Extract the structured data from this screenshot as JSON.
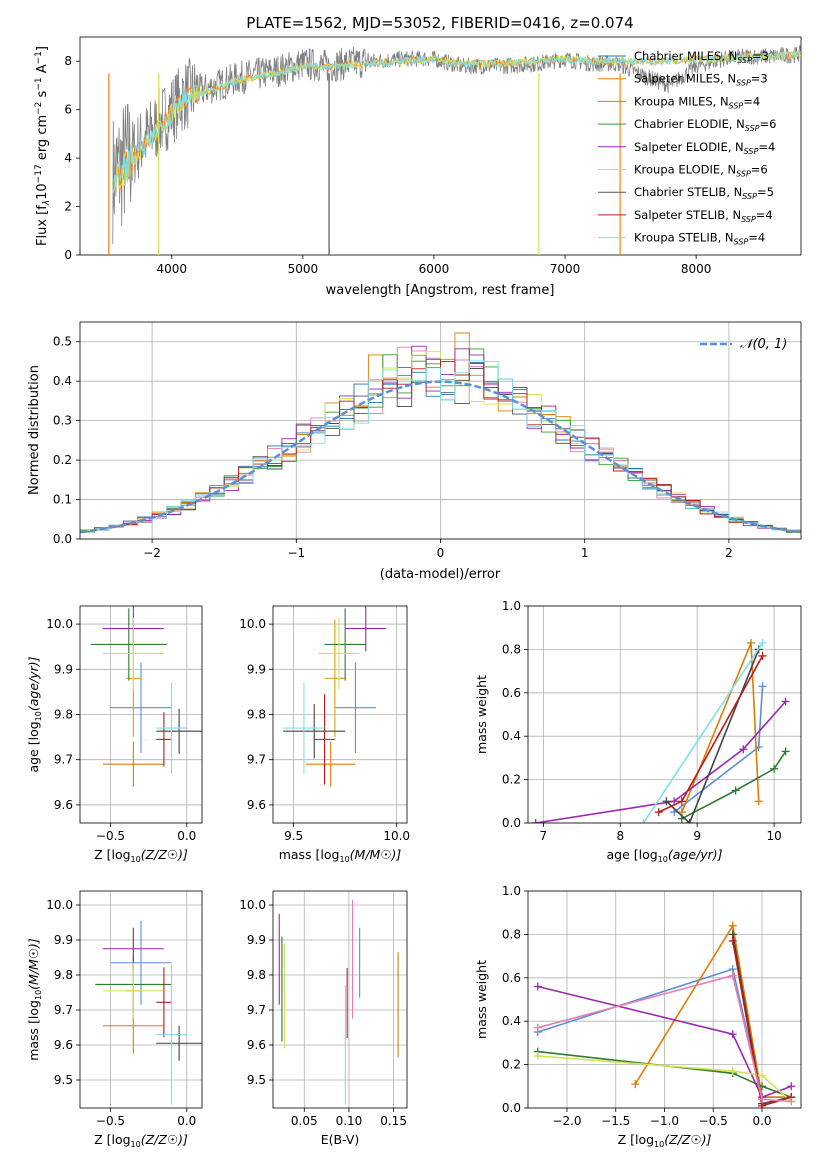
{
  "title": "PLATE=1562, MJD=53052, FIBERID=0416, z=0.074",
  "models": [
    {
      "name": "Chabrier MILES",
      "nssp": "3",
      "color": "#1f77b4"
    },
    {
      "name": "Salpeter MILES",
      "nssp": "3",
      "color": "#ff7f0e"
    },
    {
      "name": "Kroupa MILES",
      "nssp": "4",
      "color": "#e07b00"
    },
    {
      "name": "Chabrier ELODIE",
      "nssp": "6",
      "color": "#2ca02c"
    },
    {
      "name": "Salpeter ELODIE",
      "nssp": "4",
      "color": "#9c27b0"
    },
    {
      "name": "Kroupa ELODIE",
      "nssp": "6",
      "color": "#d4e157"
    },
    {
      "name": "Chabrier STELIB",
      "nssp": "5",
      "color": "#555555"
    },
    {
      "name": "Salpeter STELIB",
      "nssp": "4",
      "color": "#b71c1c"
    },
    {
      "name": "Kroupa STELIB",
      "nssp": "4",
      "color": "#80deea"
    }
  ],
  "panel_spectrum": {
    "xlabel": "wavelength [Angstrom, rest frame]",
    "ylabel_parts": [
      "Flux [f",
      "λ",
      "10",
      "−17",
      " erg cm",
      "−2",
      " s",
      "−1",
      " A",
      "−1",
      "]"
    ],
    "x_ticks": [
      "4000",
      "5000",
      "6000",
      "7000",
      "8000"
    ],
    "y_ticks": [
      "0",
      "2",
      "4",
      "6",
      "8"
    ],
    "legend_prefix": "N",
    "legend_sub": "SSP"
  },
  "panel_residuals": {
    "xlabel": "(data-model)/error",
    "ylabel": "Normed distribution",
    "x_ticks": [
      "−2",
      "−1",
      "0",
      "1",
      "2"
    ],
    "y_ticks": [
      "0.0",
      "0.1",
      "0.2",
      "0.3",
      "0.4",
      "0.5"
    ],
    "legend_label": "𝒩(0, 1)"
  },
  "panel_age_z": {
    "xlabel": "Z [log10(Z/Z☉)]",
    "ylabel": "age  [log10(age/yr)]",
    "x_ticks": [
      "−0.5",
      "0.0"
    ],
    "y_ticks": [
      "9.6",
      "9.7",
      "9.8",
      "9.9",
      "10.0"
    ]
  },
  "panel_age_mass": {
    "xlabel": "mass [log10(M/M☉)]",
    "x_ticks": [
      "9.5",
      "10.0"
    ],
    "y_ticks": [
      "9.6",
      "9.7",
      "9.8",
      "9.9",
      "10.0"
    ]
  },
  "panel_weight_age": {
    "xlabel": "age  [log10(age/yr)]",
    "ylabel": "mass weight",
    "x_ticks": [
      "7",
      "8",
      "9",
      "10"
    ],
    "y_ticks": [
      "0.0",
      "0.2",
      "0.4",
      "0.6",
      "0.8",
      "1.0"
    ]
  },
  "panel_mass_z": {
    "xlabel": "Z [log10(Z/Z☉)]",
    "ylabel": "mass [log10(M/M☉)]",
    "x_ticks": [
      "−0.5",
      "0.0"
    ],
    "y_ticks": [
      "9.5",
      "9.6",
      "9.7",
      "9.8",
      "9.9",
      "10.0"
    ]
  },
  "panel_mass_ebv": {
    "xlabel": "E(B-V)",
    "x_ticks": [
      "0.05",
      "0.10",
      "0.15"
    ],
    "y_ticks": [
      "9.5",
      "9.6",
      "9.7",
      "9.8",
      "9.9",
      "10.0"
    ]
  },
  "panel_weight_z": {
    "xlabel": "Z [log10(Z/Z☉)]",
    "ylabel": "mass weight",
    "x_ticks": [
      "−2.0",
      "−1.5",
      "−1.0",
      "−0.5",
      "0.0"
    ],
    "y_ticks": [
      "0.0",
      "0.2",
      "0.4",
      "0.6",
      "0.8",
      "1.0"
    ]
  },
  "chart_data": [
    {
      "type": "line",
      "title": "PLATE=1562, MJD=53052, FIBERID=0416, z=0.074",
      "xlabel": "wavelength [Angstrom, rest frame]",
      "ylabel": "Flux [fλ 10^-17 erg cm^-2 s^-1 A^-1]",
      "xlim": [
        3300,
        8800
      ],
      "ylim": [
        0,
        9
      ],
      "series": [
        {
          "name": "data (grey)",
          "x": [
            3550,
            3700,
            3900,
            4100,
            4300,
            4500,
            4800,
            5000,
            5200,
            5500,
            5800,
            6000,
            6200,
            6500,
            6800,
            7000,
            7200,
            7400,
            7600,
            7800,
            8000,
            8200,
            8400,
            8600,
            8800
          ],
          "values": [
            3.2,
            4.2,
            5.4,
            6.6,
            6.9,
            7.3,
            7.6,
            7.9,
            7.8,
            8.0,
            8.1,
            8.1,
            7.8,
            7.8,
            7.9,
            8.1,
            7.9,
            7.9,
            7.4,
            7.0,
            7.8,
            8.1,
            8.2,
            8.2,
            8.3
          ]
        },
        {
          "name": "model (cyan)",
          "x": [
            3550,
            3700,
            3900,
            4100,
            4300,
            4500,
            4800,
            5000,
            5200,
            5500,
            5800,
            6000,
            6200,
            6500,
            6800,
            7000,
            7200,
            7400,
            7600,
            7800,
            8000,
            8200,
            8400,
            8600,
            8800
          ],
          "values": [
            3.0,
            4.0,
            5.2,
            6.5,
            6.8,
            7.2,
            7.5,
            7.8,
            7.8,
            7.9,
            8.0,
            8.1,
            7.9,
            7.9,
            8.0,
            8.1,
            8.0,
            8.0,
            8.0,
            8.0,
            8.1,
            8.1,
            8.2,
            8.2,
            8.3
          ]
        }
      ]
    },
    {
      "type": "line",
      "xlabel": "(data-model)/error",
      "ylabel": "Normed distribution",
      "xlim": [
        -2.5,
        2.5
      ],
      "ylim": [
        0,
        0.55
      ],
      "series": [
        {
          "name": "𝒩(0, 1)",
          "x": [
            -2.5,
            -2,
            -1.5,
            -1,
            -0.5,
            0,
            0.5,
            1,
            1.5,
            2,
            2.5
          ],
          "values": [
            0.018,
            0.054,
            0.13,
            0.242,
            0.352,
            0.399,
            0.352,
            0.242,
            0.13,
            0.054,
            0.018
          ]
        }
      ]
    },
    {
      "type": "scatter",
      "xlabel": "Z [log10(Z/Z☉)]",
      "ylabel": "age [log10(age/yr)]",
      "xlim": [
        -0.7,
        0.1
      ],
      "ylim": [
        9.56,
        10.04
      ],
      "series": [
        {
          "name": "Chabrier MILES",
          "x": [
            -0.3
          ],
          "y": [
            9.815
          ],
          "xerr": [
            0.2
          ],
          "yerr": [
            0.1
          ]
        },
        {
          "name": "Salpeter MILES",
          "x": [
            -0.35
          ],
          "y": [
            9.69
          ],
          "xerr": [
            0.2
          ],
          "yerr": [
            0.05
          ]
        },
        {
          "name": "Kroupa MILES",
          "x": [
            -0.35
          ],
          "y": [
            9.88
          ],
          "xerr": [
            0.05
          ],
          "yerr": [
            0.13
          ]
        },
        {
          "name": "Chabrier ELODIE",
          "x": [
            -0.38
          ],
          "y": [
            9.955
          ],
          "xerr": [
            0.25
          ],
          "yerr": [
            0.08
          ]
        },
        {
          "name": "Salpeter ELODIE",
          "x": [
            -0.35
          ],
          "y": [
            9.99
          ],
          "xerr": [
            0.2
          ],
          "yerr": [
            0.05
          ]
        },
        {
          "name": "Kroupa ELODIE",
          "x": [
            -0.35
          ],
          "y": [
            9.935
          ],
          "xerr": [
            0.2
          ],
          "yerr": [
            0.08
          ]
        },
        {
          "name": "Chabrier STELIB",
          "x": [
            -0.05
          ],
          "y": [
            9.763
          ],
          "xerr": [
            0.15
          ],
          "yerr": [
            0.05
          ]
        },
        {
          "name": "Salpeter STELIB",
          "x": [
            -0.15
          ],
          "y": [
            9.745
          ],
          "xerr": [
            0.05
          ],
          "yerr": [
            0.06
          ]
        },
        {
          "name": "Kroupa STELIB",
          "x": [
            -0.1
          ],
          "y": [
            9.77
          ],
          "xerr": [
            0.1
          ],
          "yerr": [
            0.1
          ]
        }
      ]
    },
    {
      "type": "scatter",
      "xlabel": "mass [log10(M/M☉)]",
      "ylabel": "age [log10(age/yr)]",
      "xlim": [
        9.4,
        10.05
      ],
      "ylim": [
        9.56,
        10.04
      ],
      "series": [
        {
          "name": "Chabrier MILES",
          "x": [
            9.8
          ],
          "y": [
            9.815
          ],
          "xerr": [
            0.1
          ],
          "yerr": [
            0.1
          ]
        },
        {
          "name": "Salpeter MILES",
          "x": [
            9.68
          ],
          "y": [
            9.69
          ],
          "xerr": [
            0.12
          ],
          "yerr": [
            0.05
          ]
        },
        {
          "name": "Kroupa MILES",
          "x": [
            9.7
          ],
          "y": [
            9.88
          ],
          "xerr": [
            0.05
          ],
          "yerr": [
            0.13
          ]
        },
        {
          "name": "Chabrier ELODIE",
          "x": [
            9.75
          ],
          "y": [
            9.955
          ],
          "xerr": [
            0.1
          ],
          "yerr": [
            0.08
          ]
        },
        {
          "name": "Salpeter ELODIE",
          "x": [
            9.85
          ],
          "y": [
            9.99
          ],
          "xerr": [
            0.1
          ],
          "yerr": [
            0.05
          ]
        },
        {
          "name": "Kroupa ELODIE",
          "x": [
            9.72
          ],
          "y": [
            9.935
          ],
          "xerr": [
            0.1
          ],
          "yerr": [
            0.08
          ]
        },
        {
          "name": "Chabrier STELIB",
          "x": [
            9.6
          ],
          "y": [
            9.763
          ],
          "xerr": [
            0.15
          ],
          "yerr": [
            0.06
          ]
        },
        {
          "name": "Salpeter STELIB",
          "x": [
            9.65
          ],
          "y": [
            9.745
          ],
          "xerr": [
            0.05
          ],
          "yerr": [
            0.1
          ]
        },
        {
          "name": "Kroupa STELIB",
          "x": [
            9.55
          ],
          "y": [
            9.77
          ],
          "xerr": [
            0.1
          ],
          "yerr": [
            0.1
          ]
        }
      ]
    },
    {
      "type": "line",
      "xlabel": "age [log10(age/yr)]",
      "ylabel": "mass weight",
      "xlim": [
        6.8,
        10.35
      ],
      "ylim": [
        0,
        1
      ],
      "series": [
        {
          "name": "Chabrier MILES",
          "x": [
            8.7,
            9.8,
            9.85
          ],
          "values": [
            0.05,
            0.35,
            0.63
          ]
        },
        {
          "name": "Salpeter MILES",
          "x": [
            8.8,
            9.7,
            9.8
          ],
          "values": [
            0.05,
            0.83,
            0.1
          ]
        },
        {
          "name": "Chabrier ELODIE",
          "x": [
            8.8,
            9.5,
            10,
            10.15
          ],
          "values": [
            0.02,
            0.15,
            0.25,
            0.33
          ]
        },
        {
          "name": "Salpeter ELODIE",
          "x": [
            6.9,
            8.7,
            9.6,
            10.15
          ],
          "values": [
            0.0,
            0.1,
            0.34,
            0.56
          ]
        },
        {
          "name": "Chabrier STELIB",
          "x": [
            8.6,
            8.9,
            9.8
          ],
          "values": [
            0.1,
            0.0,
            0.8
          ]
        },
        {
          "name": "Salpeter STELIB",
          "x": [
            8.5,
            8.8,
            9.85
          ],
          "values": [
            0.05,
            0.1,
            0.77
          ]
        },
        {
          "name": "Kroupa STELIB",
          "x": [
            8.3,
            9.85
          ],
          "values": [
            0.0,
            0.83
          ]
        }
      ]
    },
    {
      "type": "scatter",
      "xlabel": "Z [log10(Z/Z☉)]",
      "ylabel": "mass [log10(M/M☉)]",
      "xlim": [
        -0.7,
        0.1
      ],
      "ylim": [
        9.42,
        10.04
      ],
      "series": [
        {
          "name": "Chabrier MILES",
          "x": [
            -0.3
          ],
          "y": [
            9.835
          ],
          "xerr": [
            0.2
          ],
          "yerr": [
            0.12
          ]
        },
        {
          "name": "Salpeter MILES",
          "x": [
            -0.35
          ],
          "y": [
            9.655
          ],
          "xerr": [
            0.2
          ],
          "yerr": [
            0.08
          ]
        },
        {
          "name": "Kroupa MILES",
          "x": [
            -0.35
          ],
          "y": [
            9.755
          ],
          "xerr": [
            0.05
          ],
          "yerr": [
            0.18
          ]
        },
        {
          "name": "Chabrier ELODIE",
          "x": [
            -0.35
          ],
          "y": [
            9.773
          ],
          "xerr": [
            0.25
          ],
          "yerr": [
            0.08
          ]
        },
        {
          "name": "Salpeter ELODIE",
          "x": [
            -0.35
          ],
          "y": [
            9.875
          ],
          "xerr": [
            0.2
          ],
          "yerr": [
            0.06
          ]
        },
        {
          "name": "Kroupa ELODIE",
          "x": [
            -0.35
          ],
          "y": [
            9.755
          ],
          "xerr": [
            0.2
          ],
          "yerr": [
            0.08
          ]
        },
        {
          "name": "Chabrier STELIB",
          "x": [
            -0.05
          ],
          "y": [
            9.605
          ],
          "xerr": [
            0.15
          ],
          "yerr": [
            0.05
          ]
        },
        {
          "name": "Salpeter STELIB",
          "x": [
            -0.15
          ],
          "y": [
            9.722
          ],
          "xerr": [
            0.05
          ],
          "yerr": [
            0.1
          ]
        },
        {
          "name": "Kroupa STELIB",
          "x": [
            -0.1
          ],
          "y": [
            9.63
          ],
          "xerr": [
            0.1
          ],
          "yerr": [
            0.2
          ]
        }
      ]
    },
    {
      "type": "scatter",
      "xlabel": "E(B-V)",
      "ylabel": "mass [log10(M/M☉)]",
      "xlim": [
        0.015,
        0.165
      ],
      "ylim": [
        9.42,
        10.04
      ],
      "series": [
        {
          "name": "Chabrier MILES",
          "x": [
            0.112
          ],
          "y": [
            9.835
          ],
          "yerr": [
            0.1
          ]
        },
        {
          "name": "Salpeter MILES",
          "x": [
            0.155
          ],
          "y": [
            9.715
          ],
          "yerr": [
            0.15
          ]
        },
        {
          "name": "Chabrier ELODIE",
          "x": [
            0.025
          ],
          "y": [
            9.76
          ],
          "yerr": [
            0.15
          ]
        },
        {
          "name": "Salpeter ELODIE",
          "x": [
            0.022
          ],
          "y": [
            9.845
          ],
          "yerr": [
            0.13
          ]
        },
        {
          "name": "Kroupa ELODIE",
          "x": [
            0.028
          ],
          "y": [
            9.74
          ],
          "yerr": [
            0.15
          ]
        },
        {
          "name": "Salpeter STELIB",
          "x": [
            0.098
          ],
          "y": [
            9.72
          ],
          "yerr": [
            0.1
          ]
        },
        {
          "name": "Kroupa STELIB",
          "x": [
            0.096
          ],
          "y": [
            9.6
          ],
          "yerr": [
            0.17
          ]
        },
        {
          "name": "Kroupa MILES pink",
          "x": [
            0.104
          ],
          "y": [
            9.845
          ],
          "yerr": [
            0.17
          ]
        }
      ]
    },
    {
      "type": "line",
      "xlabel": "Z [log10(Z/Z☉)]",
      "ylabel": "mass weight",
      "xlim": [
        -2.4,
        0.4
      ],
      "ylim": [
        0,
        1
      ],
      "series": [
        {
          "name": "Chabrier MILES",
          "x": [
            -2.3,
            -0.3,
            0,
            0.3
          ],
          "values": [
            0.35,
            0.64,
            0.05,
            0.05
          ]
        },
        {
          "name": "Salpeter MILES",
          "x": [
            -1.3,
            -0.3,
            0,
            0.3
          ],
          "values": [
            0.11,
            0.84,
            0.05,
            0.05
          ]
        },
        {
          "name": "Chabrier ELODIE",
          "x": [
            -2.3,
            -0.3,
            0,
            0.3
          ],
          "values": [
            0.26,
            0.16,
            0.1,
            0.05
          ]
        },
        {
          "name": "Salpeter ELODIE",
          "x": [
            -2.3,
            -0.3,
            0,
            0.3
          ],
          "values": [
            0.56,
            0.34,
            0.05,
            0.1
          ]
        },
        {
          "name": "Kroupa ELODIE",
          "x": [
            -2.3,
            -0.3,
            0,
            0.3
          ],
          "values": [
            0.24,
            0.17,
            0.15,
            0.03
          ]
        },
        {
          "name": "Chabrier STELIB",
          "x": [
            -0.3,
            0,
            0.3
          ],
          "values": [
            0.8,
            0.02,
            0.05
          ]
        },
        {
          "name": "Salpeter STELIB",
          "x": [
            -0.3,
            0,
            0.3
          ],
          "values": [
            0.77,
            0.01,
            0.05
          ]
        },
        {
          "name": "Kroupa pink",
          "x": [
            -2.3,
            -0.3,
            0,
            0.3
          ],
          "values": [
            0.37,
            0.61,
            0.04,
            0.03
          ]
        }
      ]
    }
  ]
}
